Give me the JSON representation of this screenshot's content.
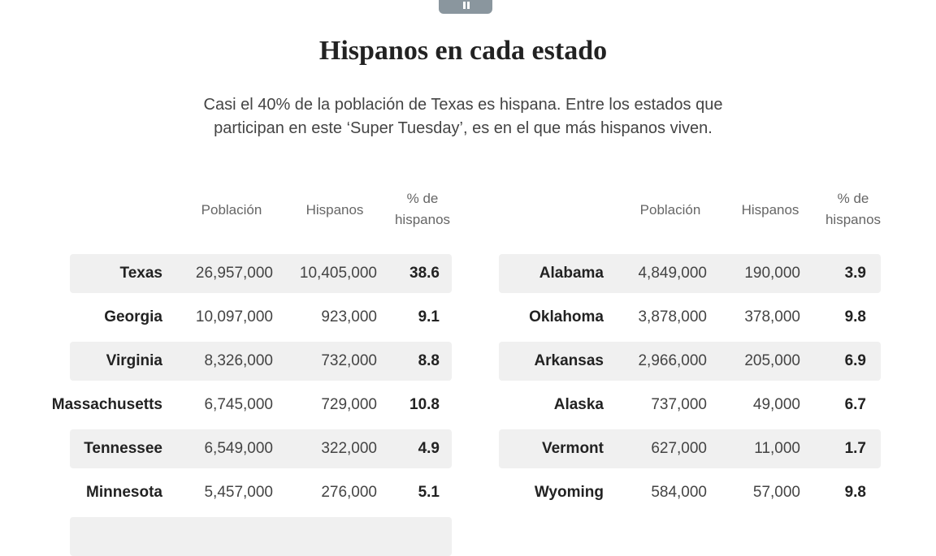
{
  "header": {
    "title": "Hispanos en cada estado",
    "subtitle": "Casi el 40% de la población de Texas es hispana. Entre los estados que participan en este ‘Super Tuesday’, es en el que más hispanos viven."
  },
  "tables": [
    {
      "columns": [
        "Población",
        "Hispanos",
        "% de hispanos"
      ],
      "rows": [
        [
          "Texas",
          "26,957,000",
          "10,405,000",
          "38.6"
        ],
        [
          "Georgia",
          "10,097,000",
          "923,000",
          "9.1"
        ],
        [
          "Virginia",
          "8,326,000",
          "732,000",
          "8.8"
        ],
        [
          "Massachusetts",
          "6,745,000",
          "729,000",
          "10.8"
        ],
        [
          "Tennessee",
          "6,549,000",
          "322,000",
          "4.9"
        ],
        [
          "Minnesota",
          "5,457,000",
          "276,000",
          "5.1"
        ]
      ]
    },
    {
      "columns": [
        "Población",
        "Hispanos",
        "% de hispanos"
      ],
      "rows": [
        [
          "Alabama",
          "4,849,000",
          "190,000",
          "3.9"
        ],
        [
          "Oklahoma",
          "3,878,000",
          "378,000",
          "9.8"
        ],
        [
          "Arkansas",
          "2,966,000",
          "205,000",
          "6.9"
        ],
        [
          "Alaska",
          "737,000",
          "49,000",
          "6.7"
        ],
        [
          "Vermont",
          "627,000",
          "11,000",
          "1.7"
        ],
        [
          "Wyoming",
          "584,000",
          "57,000",
          "9.8"
        ]
      ]
    }
  ]
}
